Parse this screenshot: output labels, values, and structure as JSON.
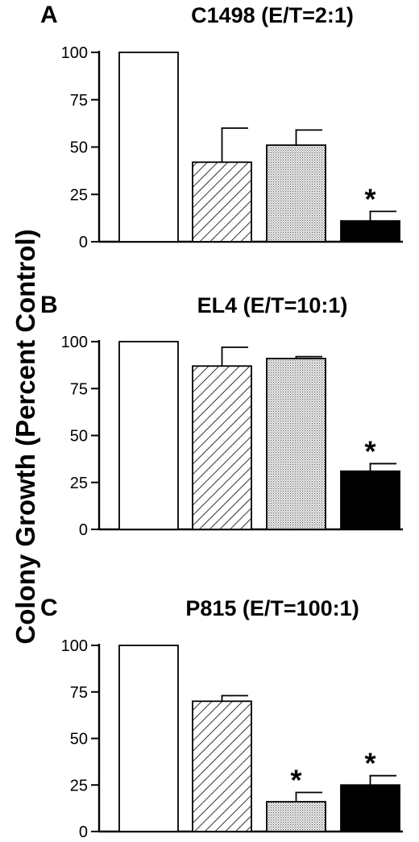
{
  "figure": {
    "ylabel": "Colony Growth (Percent Control)"
  },
  "chart_data": [
    {
      "type": "bar",
      "letter": "A",
      "title": "C1498 (E/T=2:1)",
      "ylim": [
        0,
        100
      ],
      "yticks": [
        "0",
        "25",
        "50",
        "75",
        "100"
      ],
      "bars": [
        {
          "value": 100,
          "error": 0,
          "pattern": "open",
          "significant": false
        },
        {
          "value": 42,
          "error": 18,
          "pattern": "hatched",
          "significant": false
        },
        {
          "value": 51,
          "error": 8,
          "pattern": "dotted",
          "significant": false
        },
        {
          "value": 11,
          "error": 5,
          "pattern": "solid",
          "significant": true
        }
      ],
      "significance_marker": "*"
    },
    {
      "type": "bar",
      "letter": "B",
      "title": "EL4 (E/T=10:1)",
      "ylim": [
        0,
        100
      ],
      "yticks": [
        "0",
        "25",
        "50",
        "75",
        "100"
      ],
      "bars": [
        {
          "value": 100,
          "error": 0,
          "pattern": "open",
          "significant": false
        },
        {
          "value": 87,
          "error": 10,
          "pattern": "hatched",
          "significant": false
        },
        {
          "value": 91,
          "error": 1,
          "pattern": "dotted",
          "significant": false
        },
        {
          "value": 31,
          "error": 4,
          "pattern": "solid",
          "significant": true
        }
      ],
      "significance_marker": "*"
    },
    {
      "type": "bar",
      "letter": "C",
      "title": "P815 (E/T=100:1)",
      "ylim": [
        0,
        100
      ],
      "yticks": [
        "0",
        "25",
        "50",
        "75",
        "100"
      ],
      "bars": [
        {
          "value": 100,
          "error": 0,
          "pattern": "open",
          "significant": false
        },
        {
          "value": 70,
          "error": 3,
          "pattern": "hatched",
          "significant": false
        },
        {
          "value": 16,
          "error": 5,
          "pattern": "dotted",
          "significant": true
        },
        {
          "value": 25,
          "error": 5,
          "pattern": "solid",
          "significant": true
        }
      ],
      "significance_marker": "*"
    }
  ]
}
